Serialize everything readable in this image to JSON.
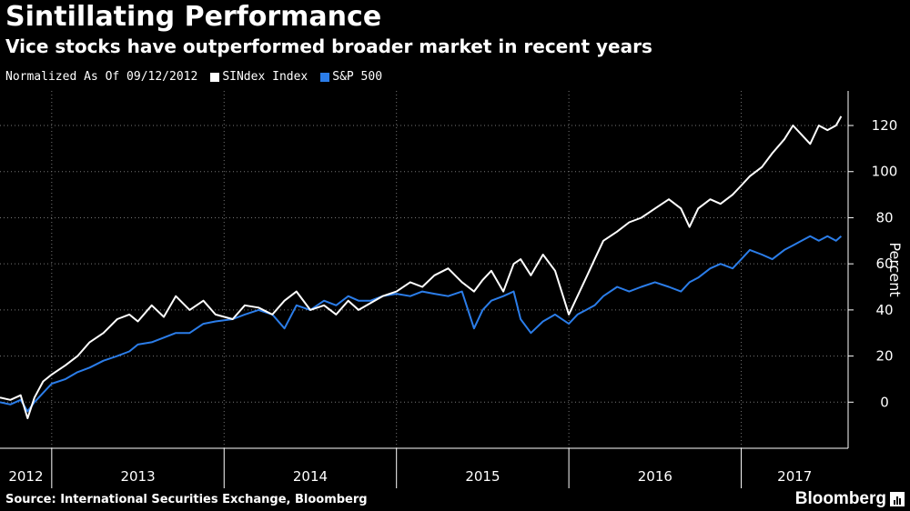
{
  "header": {
    "title": "Sintillating Performance",
    "subtitle": "Vice stocks have outperformed broader market in recent years"
  },
  "legend": {
    "note": "Normalized As Of 09/12/2012",
    "items": [
      {
        "label": "SINdex Index",
        "color": "#ffffff"
      },
      {
        "label": "S&P 500",
        "color": "#2b7de9"
      }
    ]
  },
  "footer": {
    "source": "Source: International Securities Exchange, Bloomberg",
    "brand": "Bloomberg"
  },
  "chart_data": {
    "type": "line",
    "ylabel": "Percent",
    "ylim": [
      -20,
      135
    ],
    "yticks": [
      0,
      20,
      40,
      60,
      80,
      100,
      120
    ],
    "x_range": [
      2012.7,
      2017.62
    ],
    "year_labels": [
      "2012",
      "2013",
      "2014",
      "2015",
      "2016",
      "2017"
    ],
    "grid": true,
    "colors": {
      "sindex": "#ffffff",
      "sp500": "#2b7de9"
    },
    "series": [
      {
        "name": "SINdex Index",
        "color": "#ffffff",
        "x": [
          2012.7,
          2012.76,
          2012.82,
          2012.86,
          2012.9,
          2012.95,
          2013.0,
          2013.08,
          2013.15,
          2013.22,
          2013.3,
          2013.38,
          2013.45,
          2013.5,
          2013.58,
          2013.65,
          2013.72,
          2013.8,
          2013.88,
          2013.95,
          2014.05,
          2014.12,
          2014.2,
          2014.28,
          2014.35,
          2014.42,
          2014.5,
          2014.58,
          2014.65,
          2014.72,
          2014.78,
          2014.85,
          2014.92,
          2015.0,
          2015.08,
          2015.15,
          2015.22,
          2015.3,
          2015.38,
          2015.45,
          2015.5,
          2015.55,
          2015.62,
          2015.68,
          2015.72,
          2015.78,
          2015.85,
          2015.92,
          2016.0,
          2016.05,
          2016.1,
          2016.15,
          2016.2,
          2016.28,
          2016.35,
          2016.42,
          2016.5,
          2016.58,
          2016.65,
          2016.7,
          2016.75,
          2016.82,
          2016.88,
          2016.95,
          2017.0,
          2017.05,
          2017.12,
          2017.18,
          2017.25,
          2017.3,
          2017.35,
          2017.4,
          2017.45,
          2017.5,
          2017.55,
          2017.58
        ],
        "y": [
          2,
          1,
          3,
          -7,
          2,
          9,
          12,
          16,
          20,
          26,
          30,
          36,
          38,
          35,
          42,
          37,
          46,
          40,
          44,
          38,
          36,
          42,
          41,
          38,
          44,
          48,
          40,
          42,
          38,
          44,
          40,
          43,
          46,
          48,
          52,
          50,
          55,
          58,
          52,
          48,
          53,
          57,
          48,
          60,
          62,
          55,
          64,
          57,
          38,
          46,
          54,
          62,
          70,
          74,
          78,
          80,
          84,
          88,
          84,
          76,
          84,
          88,
          86,
          90,
          94,
          98,
          102,
          108,
          114,
          120,
          116,
          112,
          120,
          118,
          120,
          124
        ]
      },
      {
        "name": "S&P 500",
        "color": "#2b7de9",
        "x": [
          2012.7,
          2012.76,
          2012.82,
          2012.86,
          2012.9,
          2012.95,
          2013.0,
          2013.08,
          2013.15,
          2013.22,
          2013.3,
          2013.38,
          2013.45,
          2013.5,
          2013.58,
          2013.65,
          2013.72,
          2013.8,
          2013.88,
          2013.95,
          2014.05,
          2014.12,
          2014.2,
          2014.28,
          2014.35,
          2014.42,
          2014.5,
          2014.58,
          2014.65,
          2014.72,
          2014.78,
          2014.85,
          2014.92,
          2015.0,
          2015.08,
          2015.15,
          2015.22,
          2015.3,
          2015.38,
          2015.45,
          2015.5,
          2015.55,
          2015.62,
          2015.68,
          2015.72,
          2015.78,
          2015.85,
          2015.92,
          2016.0,
          2016.05,
          2016.1,
          2016.15,
          2016.2,
          2016.28,
          2016.35,
          2016.42,
          2016.5,
          2016.58,
          2016.65,
          2016.7,
          2016.75,
          2016.82,
          2016.88,
          2016.95,
          2017.0,
          2017.05,
          2017.12,
          2017.18,
          2017.25,
          2017.3,
          2017.35,
          2017.4,
          2017.45,
          2017.5,
          2017.55,
          2017.58
        ],
        "y": [
          0,
          -1,
          1,
          -4,
          0,
          4,
          8,
          10,
          13,
          15,
          18,
          20,
          22,
          25,
          26,
          28,
          30,
          30,
          34,
          35,
          36,
          38,
          40,
          38,
          32,
          42,
          40,
          44,
          42,
          46,
          44,
          44,
          46,
          47,
          46,
          48,
          47,
          46,
          48,
          32,
          40,
          44,
          46,
          48,
          36,
          30,
          35,
          38,
          34,
          38,
          40,
          42,
          46,
          50,
          48,
          50,
          52,
          50,
          48,
          52,
          54,
          58,
          60,
          58,
          62,
          66,
          64,
          62,
          66,
          68,
          70,
          72,
          70,
          72,
          70,
          72
        ]
      }
    ]
  }
}
